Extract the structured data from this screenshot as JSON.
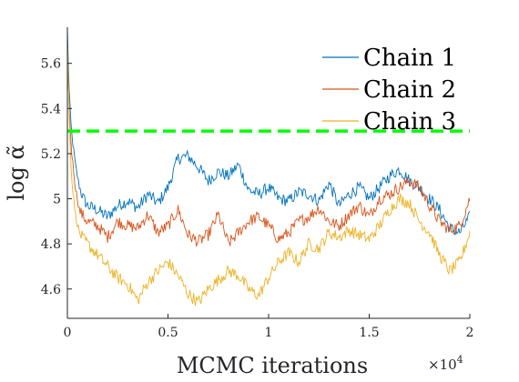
{
  "chart_data": {
    "type": "line",
    "title": "",
    "xlabel": "MCMC iterations",
    "ylabel": "log α̃",
    "x_exponent_label": "×10",
    "x_exponent_power": "4",
    "xlim": [
      0,
      20000
    ],
    "ylim": [
      4.47,
      5.76
    ],
    "x_ticks": [
      0,
      5000,
      10000,
      15000,
      20000
    ],
    "x_tick_labels": [
      "0",
      "0.5",
      "1",
      "1.5",
      "2"
    ],
    "y_ticks": [
      4.6,
      4.8,
      5.0,
      5.2,
      5.4,
      5.6
    ],
    "y_tick_labels": [
      "4.6",
      "4.8",
      "5",
      "5.2",
      "5.4",
      "5.6"
    ],
    "reference_line": {
      "y": 5.3,
      "color": "#00ff00",
      "style": "dashed"
    },
    "grid": false,
    "legend_position": "top-right",
    "series": [
      {
        "name": "Chain 1",
        "color": "#0072bd",
        "x": [
          0,
          100,
          200,
          400,
          600,
          800,
          1000,
          1500,
          2000,
          2500,
          3000,
          3500,
          4000,
          4500,
          5000,
          5500,
          6000,
          6500,
          7000,
          7500,
          8000,
          8500,
          9000,
          9500,
          10000,
          10500,
          11000,
          11500,
          12000,
          12500,
          13000,
          13500,
          14000,
          14500,
          15000,
          15500,
          16000,
          16500,
          17000,
          17500,
          18000,
          18500,
          19000,
          19500,
          20000
        ],
        "y": [
          5.75,
          5.45,
          5.3,
          5.15,
          5.05,
          5.0,
          4.97,
          4.95,
          4.92,
          4.97,
          4.99,
          4.96,
          5.02,
          4.98,
          5.05,
          5.18,
          5.19,
          5.14,
          5.08,
          5.12,
          5.1,
          5.15,
          5.04,
          5.02,
          5.05,
          5.0,
          4.99,
          5.03,
          5.02,
          4.99,
          5.07,
          4.97,
          5.02,
          5.05,
          5.0,
          5.05,
          5.1,
          5.13,
          5.08,
          5.05,
          5.0,
          4.95,
          4.87,
          4.85,
          4.92
        ]
      },
      {
        "name": "Chain 2",
        "color": "#d95319",
        "x": [
          0,
          100,
          200,
          400,
          600,
          800,
          1000,
          1500,
          2000,
          2500,
          3000,
          3500,
          4000,
          4500,
          5000,
          5500,
          6000,
          6500,
          7000,
          7500,
          8000,
          8500,
          9000,
          9500,
          10000,
          10500,
          11000,
          11500,
          12000,
          12500,
          13000,
          13500,
          14000,
          14500,
          15000,
          15500,
          16000,
          16500,
          17000,
          17500,
          18000,
          18500,
          19000,
          19500,
          20000
        ],
        "y": [
          5.62,
          5.38,
          5.22,
          5.05,
          4.95,
          4.92,
          4.9,
          4.88,
          4.83,
          4.9,
          4.88,
          4.87,
          4.93,
          4.85,
          4.88,
          4.95,
          4.84,
          4.81,
          4.84,
          4.93,
          4.8,
          4.85,
          4.9,
          4.92,
          4.88,
          4.82,
          4.85,
          4.9,
          4.92,
          4.96,
          4.9,
          4.88,
          4.93,
          4.97,
          4.92,
          5.0,
          5.02,
          5.05,
          5.08,
          5.05,
          4.97,
          4.9,
          4.86,
          4.88,
          5.0
        ]
      },
      {
        "name": "Chain 3",
        "color": "#edb120",
        "x": [
          0,
          100,
          200,
          400,
          600,
          800,
          1000,
          1500,
          2000,
          2500,
          3000,
          3500,
          4000,
          4500,
          5000,
          5500,
          6000,
          6500,
          7000,
          7500,
          8000,
          8500,
          9000,
          9500,
          10000,
          10500,
          11000,
          11500,
          12000,
          12500,
          13000,
          13500,
          14000,
          14500,
          15000,
          15500,
          16000,
          16500,
          17000,
          17500,
          18000,
          18500,
          19000,
          19500,
          20000
        ],
        "y": [
          5.7,
          5.35,
          5.1,
          4.93,
          4.85,
          4.82,
          4.8,
          4.75,
          4.7,
          4.65,
          4.62,
          4.55,
          4.63,
          4.68,
          4.72,
          4.66,
          4.58,
          4.54,
          4.6,
          4.64,
          4.68,
          4.66,
          4.6,
          4.57,
          4.65,
          4.72,
          4.76,
          4.72,
          4.8,
          4.78,
          4.85,
          4.83,
          4.86,
          4.84,
          4.82,
          4.88,
          4.95,
          5.0,
          4.98,
          4.9,
          4.85,
          4.75,
          4.68,
          4.72,
          4.85
        ]
      }
    ]
  }
}
